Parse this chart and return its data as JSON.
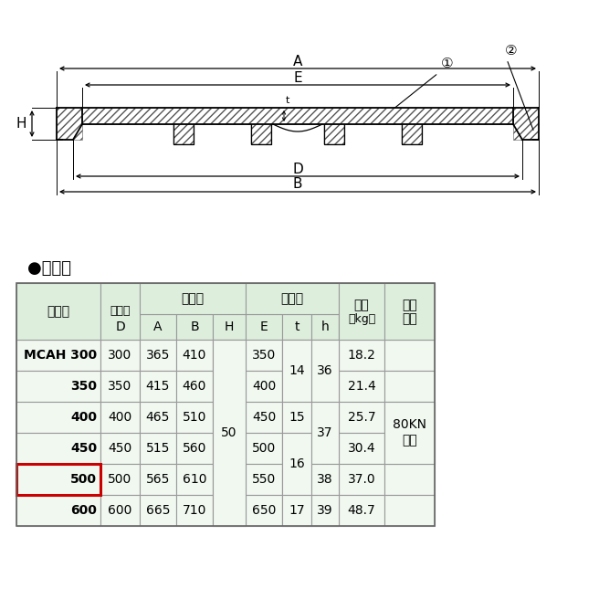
{
  "bg_color": "#ffffff",
  "table_header_bg": "#ddeedd",
  "table_data_bg": "#f0f8f0",
  "table_border_color": "#999999",
  "highlight_border_color": "#cc0000",
  "highlight_row_index": 4,
  "title": "●仕　様",
  "col0_header": "符　号",
  "col1_header": "実内径",
  "grp_ukewaku": "受　枚",
  "grp_futa": "ふ　た",
  "col_juryo": "重量",
  "col_juryo2": "（kg）",
  "col_hakai": "破壊",
  "col_hakai2": "荷重",
  "sub_D": "D",
  "sub_A": "A",
  "sub_B": "B",
  "sub_H": "H",
  "sub_E": "E",
  "sub_t": "t",
  "sub_h": "h",
  "hakai_val": "80KN",
  "hakai_val2": "以上",
  "rows": [
    [
      "MCAH 300",
      "300",
      "365",
      "410",
      "350",
      "18.2"
    ],
    [
      "350",
      "350",
      "415",
      "460",
      "400",
      "21.4"
    ],
    [
      "400",
      "400",
      "465",
      "510",
      "450",
      "25.7"
    ],
    [
      "450",
      "450",
      "515",
      "560",
      "500",
      "30.4"
    ],
    [
      "500",
      "500",
      "565",
      "610",
      "550",
      "37.0"
    ],
    [
      "600",
      "600",
      "665",
      "710",
      "650",
      "48.7"
    ]
  ],
  "H_val": "50",
  "t_vals": [
    [
      "14",
      "14"
    ],
    [
      "15",
      ""
    ],
    [
      "16",
      "16"
    ],
    [
      "17",
      ""
    ]
  ],
  "h_vals": [
    [
      "36",
      "36"
    ],
    [
      "37",
      "37"
    ],
    [
      "38",
      ""
    ],
    [
      "39",
      ""
    ]
  ],
  "diag_label_A": "A",
  "diag_label_E": "E",
  "diag_label_D": "D",
  "diag_label_B": "B",
  "diag_label_H": "H",
  "diag_label_t": "t",
  "diag_circle1": "①",
  "diag_circle2": "②"
}
